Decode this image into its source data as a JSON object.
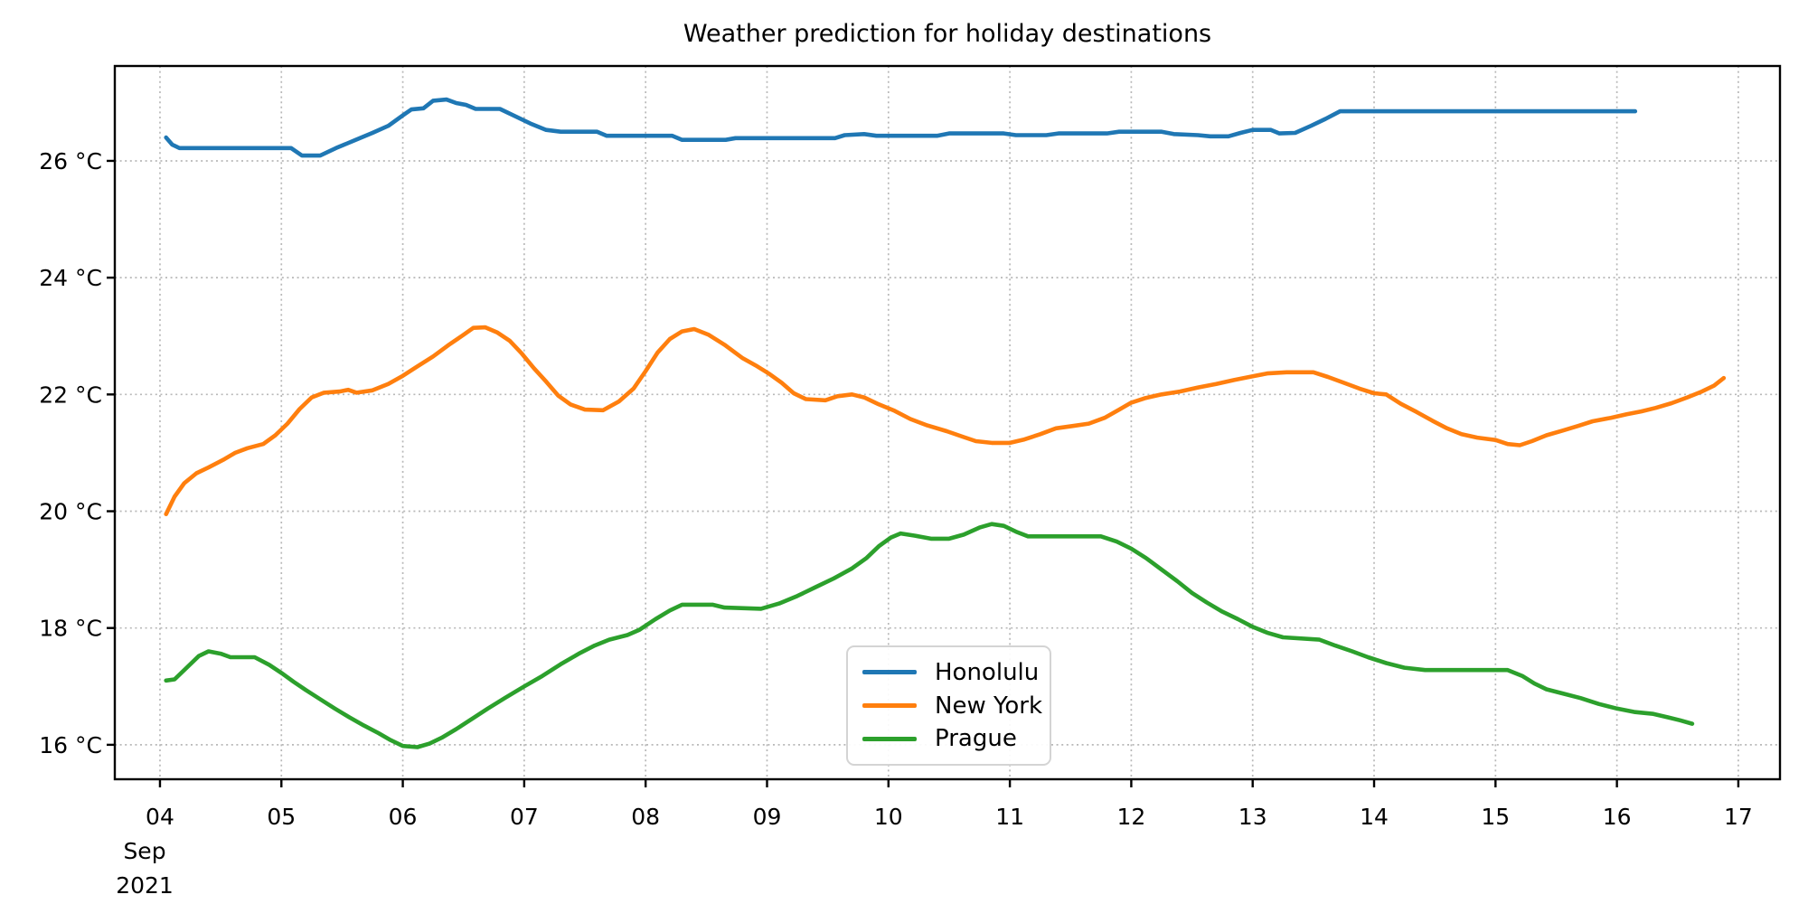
{
  "title": "Weather prediction for holiday destinations",
  "chart_data": {
    "type": "line",
    "title": "Weather prediction for holiday destinations",
    "grid": true,
    "grid_style": "dotted",
    "x_axis": {
      "month_label": "Sep",
      "year_label": "2021",
      "tick_labels": [
        "04",
        "05",
        "06",
        "07",
        "08",
        "09",
        "10",
        "11",
        "12",
        "13",
        "14",
        "15",
        "16",
        "17"
      ],
      "tick_values": [
        4,
        5,
        6,
        7,
        8,
        9,
        10,
        11,
        12,
        13,
        14,
        15,
        16,
        17
      ],
      "xlim": [
        3.628,
        17.343
      ]
    },
    "y_axis": {
      "tick_labels": [
        "16 °C",
        "18 °C",
        "20 °C",
        "22 °C",
        "24 °C",
        "26 °C"
      ],
      "tick_values": [
        16,
        18,
        20,
        22,
        24,
        26
      ],
      "ylim": [
        15.41,
        27.625
      ]
    },
    "legend": {
      "position": "lower-center-inside",
      "entries": [
        {
          "label": "Honolulu",
          "color": "#1f77b4"
        },
        {
          "label": "New York",
          "color": "#ff7f0e"
        },
        {
          "label": "Prague",
          "color": "#2ca02c"
        }
      ]
    },
    "series": [
      {
        "name": "Honolulu",
        "color": "#1f77b4",
        "points": [
          [
            4.05,
            26.4
          ],
          [
            4.1,
            26.28
          ],
          [
            4.16,
            26.22
          ],
          [
            5.08,
            26.22
          ],
          [
            5.17,
            26.09
          ],
          [
            5.32,
            26.09
          ],
          [
            5.45,
            26.22
          ],
          [
            5.6,
            26.35
          ],
          [
            5.75,
            26.48
          ],
          [
            5.88,
            26.6
          ],
          [
            6.0,
            26.78
          ],
          [
            6.07,
            26.88
          ],
          [
            6.17,
            26.9
          ],
          [
            6.25,
            27.03
          ],
          [
            6.36,
            27.05
          ],
          [
            6.44,
            26.99
          ],
          [
            6.52,
            26.96
          ],
          [
            6.6,
            26.89
          ],
          [
            6.8,
            26.89
          ],
          [
            6.92,
            26.77
          ],
          [
            7.05,
            26.64
          ],
          [
            7.18,
            26.53
          ],
          [
            7.3,
            26.5
          ],
          [
            7.6,
            26.5
          ],
          [
            7.68,
            26.43
          ],
          [
            8.22,
            26.43
          ],
          [
            8.3,
            26.36
          ],
          [
            8.66,
            26.36
          ],
          [
            8.74,
            26.39
          ],
          [
            9.56,
            26.39
          ],
          [
            9.64,
            26.44
          ],
          [
            9.8,
            26.46
          ],
          [
            9.9,
            26.43
          ],
          [
            10.4,
            26.43
          ],
          [
            10.5,
            26.47
          ],
          [
            10.95,
            26.47
          ],
          [
            11.05,
            26.44
          ],
          [
            11.3,
            26.44
          ],
          [
            11.4,
            26.47
          ],
          [
            11.8,
            26.47
          ],
          [
            11.9,
            26.5
          ],
          [
            12.25,
            26.5
          ],
          [
            12.35,
            26.46
          ],
          [
            12.55,
            26.44
          ],
          [
            12.65,
            26.42
          ],
          [
            12.8,
            26.42
          ],
          [
            12.9,
            26.48
          ],
          [
            13.0,
            26.53
          ],
          [
            13.15,
            26.53
          ],
          [
            13.22,
            26.47
          ],
          [
            13.35,
            26.48
          ],
          [
            13.48,
            26.6
          ],
          [
            13.6,
            26.72
          ],
          [
            13.72,
            26.85
          ],
          [
            16.15,
            26.85
          ]
        ]
      },
      {
        "name": "New York",
        "color": "#ff7f0e",
        "points": [
          [
            4.05,
            19.95
          ],
          [
            4.12,
            20.25
          ],
          [
            4.2,
            20.48
          ],
          [
            4.3,
            20.65
          ],
          [
            4.4,
            20.75
          ],
          [
            4.52,
            20.88
          ],
          [
            4.62,
            21.0
          ],
          [
            4.72,
            21.08
          ],
          [
            4.85,
            21.15
          ],
          [
            4.95,
            21.3
          ],
          [
            5.05,
            21.5
          ],
          [
            5.15,
            21.75
          ],
          [
            5.25,
            21.95
          ],
          [
            5.35,
            22.03
          ],
          [
            5.48,
            22.05
          ],
          [
            5.55,
            22.08
          ],
          [
            5.62,
            22.03
          ],
          [
            5.75,
            22.07
          ],
          [
            5.88,
            22.18
          ],
          [
            6.0,
            22.32
          ],
          [
            6.12,
            22.48
          ],
          [
            6.25,
            22.65
          ],
          [
            6.38,
            22.85
          ],
          [
            6.5,
            23.02
          ],
          [
            6.58,
            23.14
          ],
          [
            6.68,
            23.15
          ],
          [
            6.78,
            23.06
          ],
          [
            6.88,
            22.92
          ],
          [
            6.98,
            22.7
          ],
          [
            7.08,
            22.45
          ],
          [
            7.18,
            22.22
          ],
          [
            7.28,
            21.98
          ],
          [
            7.38,
            21.83
          ],
          [
            7.5,
            21.74
          ],
          [
            7.65,
            21.73
          ],
          [
            7.78,
            21.88
          ],
          [
            7.9,
            22.1
          ],
          [
            8.0,
            22.4
          ],
          [
            8.1,
            22.72
          ],
          [
            8.2,
            22.95
          ],
          [
            8.3,
            23.08
          ],
          [
            8.4,
            23.12
          ],
          [
            8.52,
            23.02
          ],
          [
            8.65,
            22.85
          ],
          [
            8.8,
            22.62
          ],
          [
            8.92,
            22.48
          ],
          [
            9.02,
            22.35
          ],
          [
            9.12,
            22.2
          ],
          [
            9.22,
            22.02
          ],
          [
            9.32,
            21.92
          ],
          [
            9.48,
            21.9
          ],
          [
            9.58,
            21.97
          ],
          [
            9.7,
            22.0
          ],
          [
            9.8,
            21.95
          ],
          [
            9.92,
            21.83
          ],
          [
            10.05,
            21.72
          ],
          [
            10.18,
            21.58
          ],
          [
            10.32,
            21.47
          ],
          [
            10.48,
            21.37
          ],
          [
            10.62,
            21.27
          ],
          [
            10.72,
            21.2
          ],
          [
            10.85,
            21.17
          ],
          [
            11.0,
            21.17
          ],
          [
            11.12,
            21.23
          ],
          [
            11.25,
            21.32
          ],
          [
            11.38,
            21.42
          ],
          [
            11.52,
            21.46
          ],
          [
            11.65,
            21.5
          ],
          [
            11.78,
            21.6
          ],
          [
            11.9,
            21.74
          ],
          [
            12.0,
            21.86
          ],
          [
            12.12,
            21.94
          ],
          [
            12.25,
            22.0
          ],
          [
            12.4,
            22.05
          ],
          [
            12.55,
            22.12
          ],
          [
            12.7,
            22.18
          ],
          [
            12.85,
            22.25
          ],
          [
            13.0,
            22.31
          ],
          [
            13.12,
            22.36
          ],
          [
            13.28,
            22.38
          ],
          [
            13.5,
            22.38
          ],
          [
            13.62,
            22.3
          ],
          [
            13.75,
            22.2
          ],
          [
            13.88,
            22.1
          ],
          [
            14.0,
            22.02
          ],
          [
            14.1,
            22.0
          ],
          [
            14.22,
            21.84
          ],
          [
            14.35,
            21.7
          ],
          [
            14.48,
            21.55
          ],
          [
            14.6,
            21.42
          ],
          [
            14.72,
            21.32
          ],
          [
            14.85,
            21.26
          ],
          [
            15.0,
            21.22
          ],
          [
            15.1,
            21.15
          ],
          [
            15.2,
            21.13
          ],
          [
            15.3,
            21.2
          ],
          [
            15.42,
            21.3
          ],
          [
            15.55,
            21.38
          ],
          [
            15.68,
            21.46
          ],
          [
            15.8,
            21.54
          ],
          [
            15.95,
            21.6
          ],
          [
            16.08,
            21.66
          ],
          [
            16.2,
            21.71
          ],
          [
            16.32,
            21.77
          ],
          [
            16.45,
            21.85
          ],
          [
            16.58,
            21.95
          ],
          [
            16.7,
            22.05
          ],
          [
            16.8,
            22.15
          ],
          [
            16.88,
            22.28
          ]
        ]
      },
      {
        "name": "Prague",
        "color": "#2ca02c",
        "points": [
          [
            4.05,
            17.1
          ],
          [
            4.12,
            17.12
          ],
          [
            4.22,
            17.32
          ],
          [
            4.32,
            17.52
          ],
          [
            4.4,
            17.6
          ],
          [
            4.5,
            17.56
          ],
          [
            4.58,
            17.5
          ],
          [
            4.78,
            17.5
          ],
          [
            4.9,
            17.37
          ],
          [
            5.0,
            17.23
          ],
          [
            5.1,
            17.08
          ],
          [
            5.2,
            16.94
          ],
          [
            5.32,
            16.78
          ],
          [
            5.44,
            16.62
          ],
          [
            5.56,
            16.47
          ],
          [
            5.68,
            16.33
          ],
          [
            5.8,
            16.2
          ],
          [
            5.9,
            16.08
          ],
          [
            6.0,
            15.98
          ],
          [
            6.12,
            15.96
          ],
          [
            6.22,
            16.02
          ],
          [
            6.32,
            16.12
          ],
          [
            6.44,
            16.27
          ],
          [
            6.56,
            16.43
          ],
          [
            6.7,
            16.62
          ],
          [
            6.84,
            16.8
          ],
          [
            7.0,
            17.0
          ],
          [
            7.15,
            17.18
          ],
          [
            7.3,
            17.38
          ],
          [
            7.45,
            17.56
          ],
          [
            7.58,
            17.7
          ],
          [
            7.7,
            17.8
          ],
          [
            7.85,
            17.88
          ],
          [
            7.95,
            17.97
          ],
          [
            8.08,
            18.15
          ],
          [
            8.2,
            18.3
          ],
          [
            8.3,
            18.4
          ],
          [
            8.55,
            18.4
          ],
          [
            8.65,
            18.35
          ],
          [
            8.95,
            18.33
          ],
          [
            9.1,
            18.42
          ],
          [
            9.25,
            18.55
          ],
          [
            9.4,
            18.7
          ],
          [
            9.55,
            18.85
          ],
          [
            9.7,
            19.02
          ],
          [
            9.82,
            19.2
          ],
          [
            9.92,
            19.4
          ],
          [
            10.02,
            19.55
          ],
          [
            10.1,
            19.62
          ],
          [
            10.22,
            19.58
          ],
          [
            10.35,
            19.53
          ],
          [
            10.5,
            19.53
          ],
          [
            10.62,
            19.6
          ],
          [
            10.75,
            19.72
          ],
          [
            10.85,
            19.78
          ],
          [
            10.95,
            19.75
          ],
          [
            11.05,
            19.65
          ],
          [
            11.15,
            19.57
          ],
          [
            11.75,
            19.57
          ],
          [
            11.88,
            19.48
          ],
          [
            12.0,
            19.36
          ],
          [
            12.12,
            19.2
          ],
          [
            12.25,
            19.0
          ],
          [
            12.38,
            18.8
          ],
          [
            12.5,
            18.6
          ],
          [
            12.62,
            18.44
          ],
          [
            12.75,
            18.28
          ],
          [
            12.88,
            18.15
          ],
          [
            13.0,
            18.02
          ],
          [
            13.12,
            17.92
          ],
          [
            13.25,
            17.84
          ],
          [
            13.55,
            17.8
          ],
          [
            13.68,
            17.7
          ],
          [
            13.82,
            17.6
          ],
          [
            13.95,
            17.5
          ],
          [
            14.1,
            17.4
          ],
          [
            14.25,
            17.32
          ],
          [
            14.42,
            17.28
          ],
          [
            15.1,
            17.28
          ],
          [
            15.22,
            17.18
          ],
          [
            15.32,
            17.05
          ],
          [
            15.42,
            16.95
          ],
          [
            15.55,
            16.88
          ],
          [
            15.7,
            16.8
          ],
          [
            15.85,
            16.7
          ],
          [
            16.0,
            16.62
          ],
          [
            16.15,
            16.56
          ],
          [
            16.3,
            16.53
          ],
          [
            16.42,
            16.47
          ],
          [
            16.52,
            16.42
          ],
          [
            16.62,
            16.36
          ]
        ]
      }
    ]
  }
}
